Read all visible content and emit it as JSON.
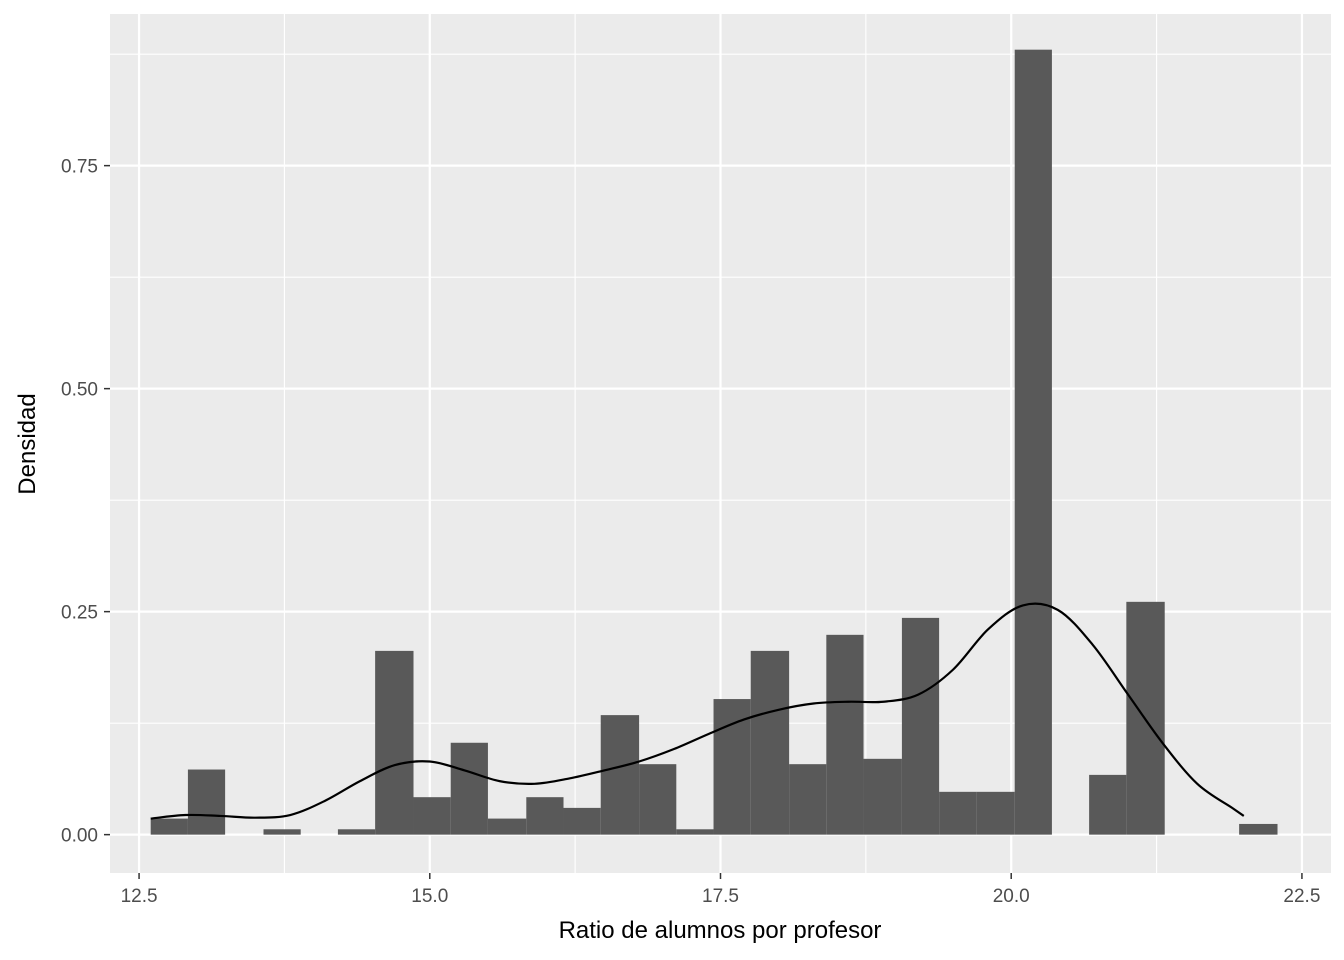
{
  "chart_data": {
    "type": "histogram",
    "xlabel": "Ratio de alumnos por profesor",
    "ylabel": "Densidad",
    "xlim": [
      12.25,
      22.75
    ],
    "ylim": [
      -0.043,
      0.92
    ],
    "x_ticks": [
      {
        "value": 12.5,
        "label": "12.5"
      },
      {
        "value": 15.0,
        "label": "15.0"
      },
      {
        "value": 17.5,
        "label": "17.5"
      },
      {
        "value": 20.0,
        "label": "20.0"
      },
      {
        "value": 22.5,
        "label": "22.5"
      }
    ],
    "y_ticks": [
      {
        "value": 0.0,
        "label": "0.00"
      },
      {
        "value": 0.25,
        "label": "0.25"
      },
      {
        "value": 0.5,
        "label": "0.50"
      },
      {
        "value": 0.75,
        "label": "0.75"
      }
    ],
    "bin_width": 0.323,
    "bins": [
      {
        "x0": 12.6,
        "x1": 12.92,
        "value": 0.018
      },
      {
        "x0": 12.92,
        "x1": 13.24,
        "value": 0.073
      },
      {
        "x0": 13.24,
        "x1": 13.57,
        "value": 0.0
      },
      {
        "x0": 13.57,
        "x1": 13.89,
        "value": 0.006
      },
      {
        "x0": 13.89,
        "x1": 14.21,
        "value": 0.0
      },
      {
        "x0": 14.21,
        "x1": 14.53,
        "value": 0.006
      },
      {
        "x0": 14.53,
        "x1": 14.86,
        "value": 0.206
      },
      {
        "x0": 14.86,
        "x1": 15.18,
        "value": 0.042
      },
      {
        "x0": 15.18,
        "x1": 15.5,
        "value": 0.103
      },
      {
        "x0": 15.5,
        "x1": 15.83,
        "value": 0.018
      },
      {
        "x0": 15.83,
        "x1": 16.15,
        "value": 0.042
      },
      {
        "x0": 16.15,
        "x1": 16.47,
        "value": 0.03
      },
      {
        "x0": 16.47,
        "x1": 16.8,
        "value": 0.134
      },
      {
        "x0": 16.8,
        "x1": 17.12,
        "value": 0.079
      },
      {
        "x0": 17.12,
        "x1": 17.44,
        "value": 0.006
      },
      {
        "x0": 17.44,
        "x1": 17.76,
        "value": 0.152
      },
      {
        "x0": 17.76,
        "x1": 18.09,
        "value": 0.206
      },
      {
        "x0": 18.09,
        "x1": 18.41,
        "value": 0.079
      },
      {
        "x0": 18.41,
        "x1": 18.73,
        "value": 0.224
      },
      {
        "x0": 18.73,
        "x1": 19.06,
        "value": 0.085
      },
      {
        "x0": 19.06,
        "x1": 19.38,
        "value": 0.243
      },
      {
        "x0": 19.38,
        "x1": 19.7,
        "value": 0.048
      },
      {
        "x0": 19.7,
        "x1": 20.03,
        "value": 0.048
      },
      {
        "x0": 20.03,
        "x1": 20.35,
        "value": 0.88
      },
      {
        "x0": 20.35,
        "x1": 20.67,
        "value": 0.0
      },
      {
        "x0": 20.67,
        "x1": 20.99,
        "value": 0.067
      },
      {
        "x0": 20.99,
        "x1": 21.32,
        "value": 0.261
      },
      {
        "x0": 21.32,
        "x1": 21.64,
        "value": 0.0
      },
      {
        "x0": 21.64,
        "x1": 21.96,
        "value": 0.0
      },
      {
        "x0": 21.96,
        "x1": 22.29,
        "value": 0.012
      }
    ],
    "density_curve": {
      "x": [
        12.6,
        12.9,
        13.2,
        13.5,
        13.8,
        14.1,
        14.4,
        14.7,
        15.0,
        15.3,
        15.6,
        15.9,
        16.2,
        16.5,
        16.8,
        17.1,
        17.4,
        17.7,
        18.0,
        18.3,
        18.6,
        18.9,
        19.2,
        19.5,
        19.8,
        20.1,
        20.4,
        20.7,
        21.0,
        21.3,
        21.6,
        21.9,
        22.0
      ],
      "y": [
        0.018,
        0.022,
        0.021,
        0.019,
        0.022,
        0.038,
        0.06,
        0.078,
        0.082,
        0.072,
        0.06,
        0.057,
        0.063,
        0.072,
        0.082,
        0.096,
        0.113,
        0.129,
        0.14,
        0.147,
        0.149,
        0.149,
        0.157,
        0.185,
        0.23,
        0.257,
        0.252,
        0.213,
        0.158,
        0.103,
        0.057,
        0.03,
        0.021
      ]
    },
    "grid": true,
    "legend": "none",
    "colors": {
      "panel_background": "#ebebeb",
      "grid_major": "#ffffff",
      "bar_fill": "#595959",
      "density_line": "#000000",
      "tick_label": "#4d4d4d"
    }
  }
}
